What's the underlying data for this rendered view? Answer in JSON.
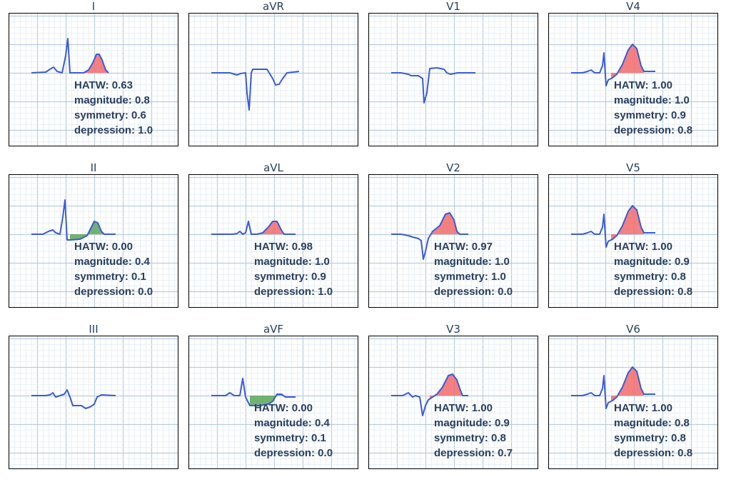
{
  "colors": {
    "grid_major": "#b9cde0",
    "grid_minor": "#e3ecf5",
    "trace": "#3b5bd6",
    "elevation": "#f26b6b",
    "depression_fill": "#5aa55a",
    "frame": "#000000",
    "text": "#2a3f5f"
  },
  "metric_labels": {
    "hatw": "HATW",
    "magnitude": "magnitude",
    "symmetry": "symmetry",
    "depression": "depression"
  },
  "chart_data": [
    {
      "type": "line",
      "lead": "I",
      "shape": "qr_upright",
      "fill": "red",
      "metrics": {
        "hatw": "0.63",
        "magnitude": "0.8",
        "symmetry": "0.6",
        "depression": "1.0"
      }
    },
    {
      "type": "line",
      "lead": "aVR",
      "shape": "inverted",
      "fill": "none",
      "metrics": null
    },
    {
      "type": "line",
      "lead": "V1",
      "shape": "rs_v1",
      "fill": "none",
      "metrics": null
    },
    {
      "type": "line",
      "lead": "V4",
      "shape": "tall_t",
      "fill": "red",
      "metrics": {
        "hatw": "1.00",
        "magnitude": "1.0",
        "symmetry": "0.9",
        "depression": "0.8"
      }
    },
    {
      "type": "line",
      "lead": "II",
      "shape": "green_t",
      "fill": "green",
      "metrics": {
        "hatw": "0.00",
        "magnitude": "0.4",
        "symmetry": "0.1",
        "depression": "0.0"
      }
    },
    {
      "type": "line",
      "lead": "aVL",
      "shape": "small_r_t",
      "fill": "red",
      "metrics": {
        "hatw": "0.98",
        "magnitude": "1.0",
        "symmetry": "0.9",
        "depression": "1.0"
      }
    },
    {
      "type": "line",
      "lead": "V2",
      "shape": "rs_t",
      "fill": "red",
      "metrics": {
        "hatw": "0.97",
        "magnitude": "1.0",
        "symmetry": "1.0",
        "depression": "0.0"
      }
    },
    {
      "type": "line",
      "lead": "V5",
      "shape": "tall_t",
      "fill": "red",
      "metrics": {
        "hatw": "1.00",
        "magnitude": "0.9",
        "symmetry": "0.8",
        "depression": "0.8"
      }
    },
    {
      "type": "line",
      "lead": "III",
      "shape": "flat_inv",
      "fill": "none",
      "metrics": null
    },
    {
      "type": "line",
      "lead": "aVF",
      "shape": "green_dep",
      "fill": "green",
      "metrics": {
        "hatw": "0.00",
        "magnitude": "0.4",
        "symmetry": "0.1",
        "depression": "0.0"
      }
    },
    {
      "type": "line",
      "lead": "V3",
      "shape": "rs_t_tall",
      "fill": "red",
      "metrics": {
        "hatw": "1.00",
        "magnitude": "0.9",
        "symmetry": "0.8",
        "depression": "0.7"
      }
    },
    {
      "type": "line",
      "lead": "V6",
      "shape": "tall_t",
      "fill": "red",
      "metrics": {
        "hatw": "1.00",
        "magnitude": "0.8",
        "symmetry": "0.8",
        "depression": "0.8"
      }
    }
  ]
}
